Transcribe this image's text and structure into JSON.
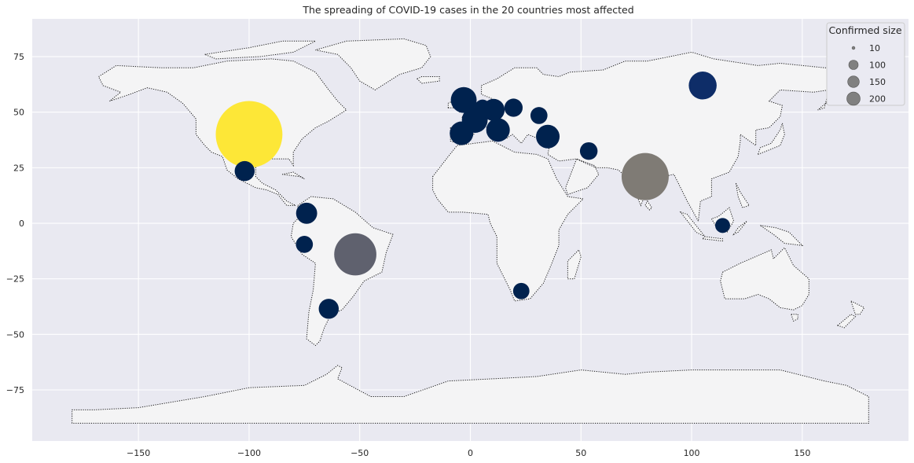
{
  "chart_data": {
    "type": "scatter",
    "title": "The spreading of COVID-19 cases in the 20 countries most affected",
    "xlabel": "",
    "ylabel": "",
    "xlim": [
      -198,
      198
    ],
    "ylim": [
      -98,
      92
    ],
    "x_ticks": [
      -150,
      -100,
      -50,
      0,
      50,
      100,
      150
    ],
    "y_ticks": [
      75,
      50,
      25,
      0,
      -25,
      -50,
      -75
    ],
    "grid": true,
    "background": "#e9e9f1",
    "land_color": "#f4f4f5",
    "colormap": "cividis",
    "points": [
      {
        "lon": -100,
        "lat": 40,
        "size": 200,
        "color": "#fde737"
      },
      {
        "lon": 79,
        "lat": 21,
        "size": 100,
        "color": "#7f7b75"
      },
      {
        "lon": -52,
        "lat": -14,
        "size": 80,
        "color": "#5f616e"
      },
      {
        "lon": 105,
        "lat": 62,
        "size": 35,
        "color": "#0e2d68"
      },
      {
        "lon": -3,
        "lat": 55.5,
        "size": 30,
        "color": "#00224e"
      },
      {
        "lon": 2,
        "lat": 46.5,
        "size": 30,
        "color": "#00224e"
      },
      {
        "lon": -4,
        "lat": 40.5,
        "size": 25,
        "color": "#00224e"
      },
      {
        "lon": 35,
        "lat": 39,
        "size": 25,
        "color": "#00224e"
      },
      {
        "lon": 12.5,
        "lat": 42,
        "size": 25,
        "color": "#00224e"
      },
      {
        "lon": 10.5,
        "lat": 51,
        "size": 22,
        "color": "#00224e"
      },
      {
        "lon": -74,
        "lat": 4.5,
        "size": 20,
        "color": "#00224e"
      },
      {
        "lon": -102,
        "lat": 23.5,
        "size": 18,
        "color": "#00224e"
      },
      {
        "lon": -64,
        "lat": -38.5,
        "size": 18,
        "color": "#00224e"
      },
      {
        "lon": 19.5,
        "lat": 52,
        "size": 15,
        "color": "#00224e"
      },
      {
        "lon": 53.5,
        "lat": 32.5,
        "size": 14,
        "color": "#00224e"
      },
      {
        "lon": 31,
        "lat": 48.5,
        "size": 13,
        "color": "#00224e"
      },
      {
        "lon": -75,
        "lat": -9.5,
        "size": 13,
        "color": "#00224e"
      },
      {
        "lon": 5.5,
        "lat": 52,
        "size": 12,
        "color": "#00224e"
      },
      {
        "lon": 23,
        "lat": -30.5,
        "size": 12,
        "color": "#00224e"
      },
      {
        "lon": 114,
        "lat": -1,
        "size": 10,
        "color": "#00224e"
      }
    ],
    "legend": {
      "title": "Confirmed size",
      "placement": "top-right",
      "marker_color": "#808080",
      "entries": [
        {
          "label": "10",
          "size": 10
        },
        {
          "label": "100",
          "size": 100
        },
        {
          "label": "150",
          "size": 150
        },
        {
          "label": "200",
          "size": 200
        }
      ]
    }
  }
}
